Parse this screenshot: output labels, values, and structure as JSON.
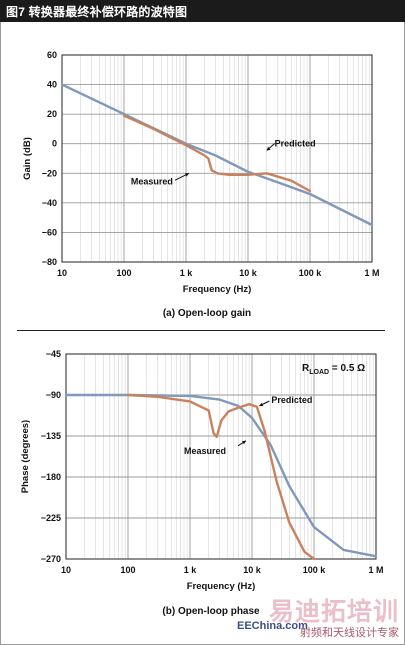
{
  "title": "图7 转换器最终补偿环路的波特图",
  "chart_data": [
    {
      "type": "line",
      "caption": "(a) Open-loop gain",
      "xlabel": "Frequency (Hz)",
      "ylabel": "Gain (dB)",
      "xscale": "log",
      "xlim": [
        10,
        1000000
      ],
      "ylim": [
        -80,
        60
      ],
      "xticks": [
        10,
        100,
        1000,
        10000,
        100000,
        1000000
      ],
      "xtick_labels": [
        "10",
        "100",
        "1 k",
        "10 k",
        "100 k",
        "1 M"
      ],
      "yticks": [
        -80,
        -60,
        -40,
        -20,
        0,
        20,
        40,
        60
      ],
      "ytick_labels": [
        "−80",
        "−60",
        "−40",
        "−20",
        "0",
        "20",
        "40",
        "60"
      ],
      "grid": true,
      "series": [
        {
          "name": "Predicted",
          "color": "#7f98bb",
          "x": [
            10,
            100,
            1000,
            3000,
            10000,
            30000,
            100000,
            1000000
          ],
          "y": [
            40,
            20,
            0,
            -8,
            -19,
            -26,
            -34,
            -55
          ]
        },
        {
          "name": "Measured",
          "color": "#c8825e",
          "x": [
            100,
            300,
            1000,
            2000,
            2300,
            2600,
            3200,
            5000,
            10000,
            20000,
            50000,
            100000
          ],
          "y": [
            19,
            10,
            -1,
            -8,
            -10,
            -18,
            -20,
            -21,
            -21,
            -20,
            -25,
            -32
          ]
        }
      ],
      "annotations": [
        {
          "text": "Predicted",
          "x": 20000,
          "y": -8
        },
        {
          "text": "Measured",
          "x": 1200,
          "y": -18
        }
      ]
    },
    {
      "type": "line",
      "caption": "(b) Open-loop phase",
      "xlabel": "Frequency (Hz)",
      "ylabel": "Phase (degrees)",
      "xscale": "log",
      "xlim": [
        10,
        1000000
      ],
      "ylim": [
        -270,
        -45
      ],
      "xticks": [
        10,
        100,
        1000,
        10000,
        100000,
        1000000
      ],
      "xtick_labels": [
        "10",
        "100",
        "1 k",
        "10 k",
        "100 k",
        "1 M"
      ],
      "yticks": [
        -270,
        -225,
        -180,
        -135,
        -90,
        -45
      ],
      "ytick_labels": [
        "−270",
        "−225",
        "−180",
        "−135",
        "−90",
        "−45"
      ],
      "grid": true,
      "label_rload": {
        "r": "R",
        "sub": "LOAD",
        "rest": " = 0.5 Ω"
      },
      "series": [
        {
          "name": "Predicted",
          "color": "#7f98bb",
          "x": [
            10,
            100,
            1000,
            3000,
            6000,
            10000,
            20000,
            40000,
            100000,
            300000,
            1000000
          ],
          "y": [
            -90,
            -90,
            -91,
            -95,
            -102,
            -115,
            -145,
            -190,
            -235,
            -260,
            -267
          ]
        },
        {
          "name": "Measured",
          "color": "#c8825e",
          "x": [
            100,
            300,
            1000,
            2000,
            2400,
            2700,
            3200,
            4200,
            6000,
            9000,
            12000,
            16000,
            25000,
            40000,
            70000,
            100000
          ],
          "y": [
            -90,
            -92,
            -97,
            -107,
            -132,
            -136,
            -118,
            -108,
            -104,
            -100,
            -103,
            -130,
            -185,
            -230,
            -262,
            -270
          ]
        }
      ],
      "annotations": [
        {
          "text": "Predicted",
          "x": 40000,
          "y": -90
        },
        {
          "text": "Measured",
          "x": 800,
          "y": -137
        }
      ]
    }
  ],
  "watermark": {
    "big": "易迪拓培训",
    "small": "射频和天线设计专家",
    "site": "EEChina.com"
  }
}
